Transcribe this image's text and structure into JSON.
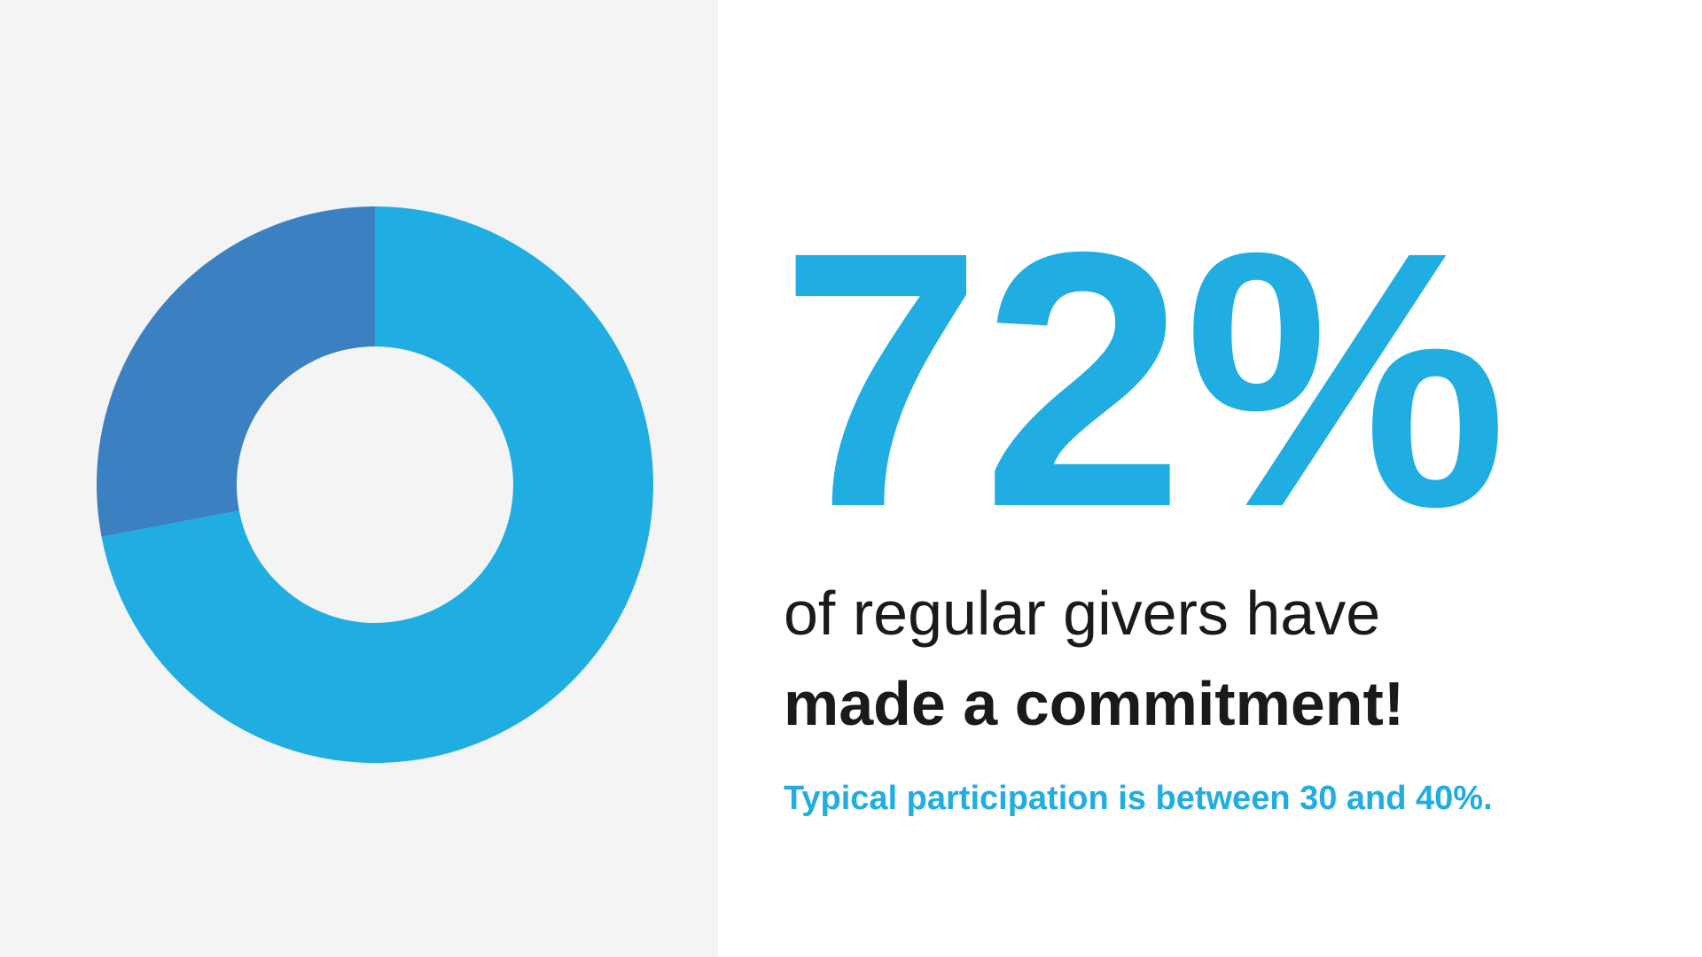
{
  "chart_data": {
    "type": "donut",
    "values": [
      72,
      28
    ],
    "value_labels": [
      "72%",
      null
    ],
    "colors": [
      "#20ade2",
      "#3b80c0"
    ],
    "caption_lines": [
      "of regular givers have",
      "made a commitment!"
    ],
    "note": "Typical participation is between 30 and 40%."
  }
}
